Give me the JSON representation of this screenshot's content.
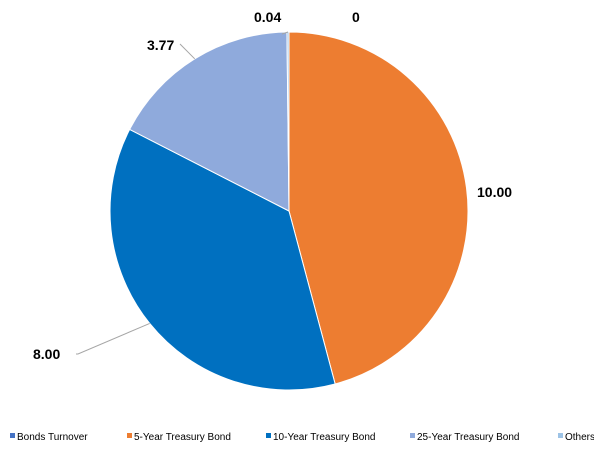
{
  "chart_data": {
    "type": "pie",
    "title": "",
    "slices": [
      {
        "name": "Bonds Turnover",
        "value": 0,
        "label": "0",
        "color": "#4472c4"
      },
      {
        "name": "5-Year Treasury Bond",
        "value": 10.0,
        "label": "10.00",
        "color": "#ed7d31"
      },
      {
        "name": "10-Year Treasury Bond",
        "value": 8.0,
        "label": "8.00",
        "color": "#0070c0"
      },
      {
        "name": "25-Year Treasury Bond",
        "value": 3.77,
        "label": "3.77",
        "color": "#8faadc"
      },
      {
        "name": "Others",
        "value": 0.04,
        "label": "0.04",
        "color": "#9dc3e6"
      }
    ],
    "legend_position": "bottom"
  }
}
